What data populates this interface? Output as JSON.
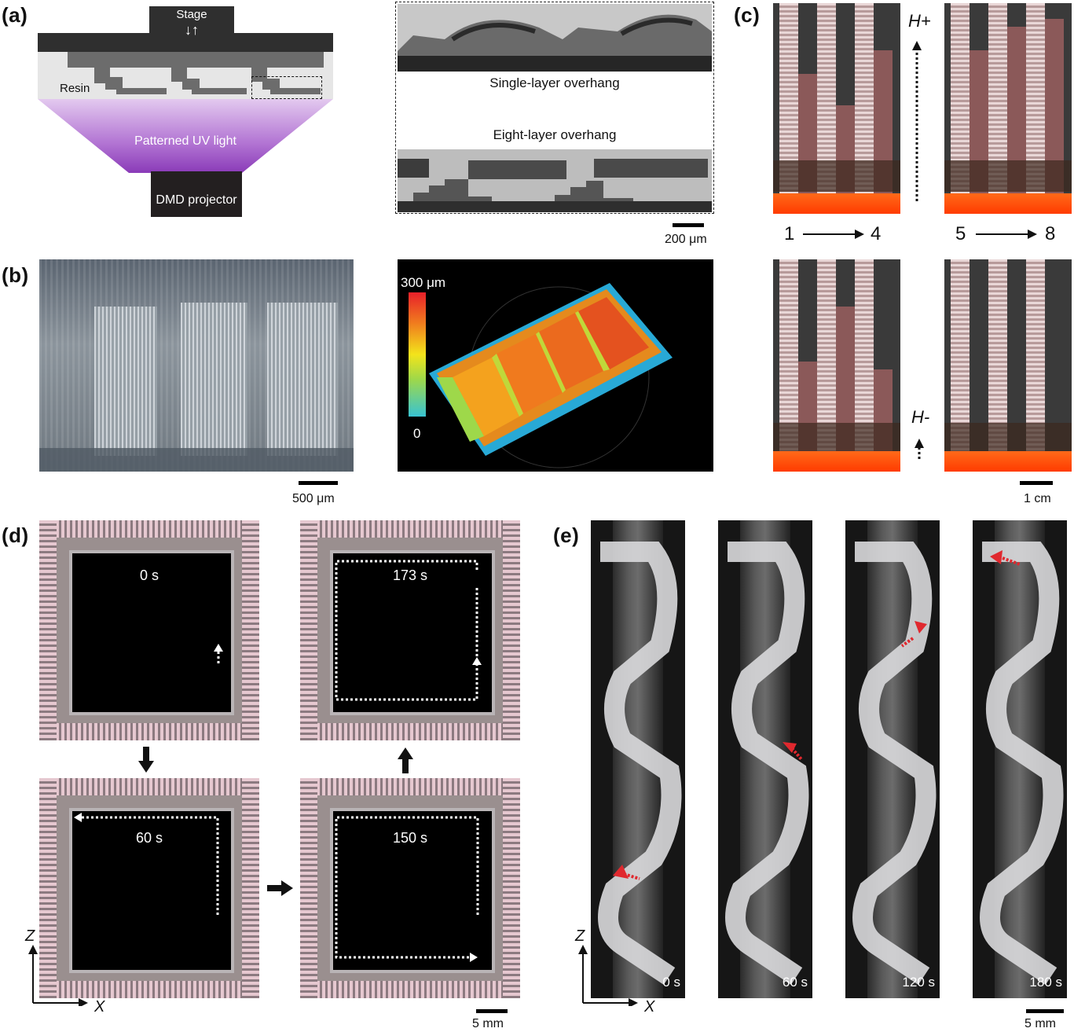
{
  "panels": {
    "a": "(a)",
    "b": "(b)",
    "c": "(c)",
    "d": "(d)",
    "e": "(e)"
  },
  "panel_a": {
    "stage": "Stage",
    "stage_arrows": "↓↑",
    "resin": "Resin",
    "uv_light": "Patterned UV light",
    "projector": "DMD projector",
    "single_layer": "Single-layer overhang",
    "eight_layer": "Eight-layer overhang",
    "scale": "200 μm",
    "colors": {
      "uv": "#b370d2",
      "part": "#6c6c6c",
      "stage": "#2f2f2f",
      "projector": "#231f20"
    }
  },
  "panel_b": {
    "scale": "500 μm",
    "colorbar_max": "300 μm",
    "colorbar_min": "0"
  },
  "panel_c": {
    "h_plus": "H+",
    "h_minus": "H-",
    "seq_start_1": "1",
    "seq_end_1": "4",
    "seq_start_2": "5",
    "seq_end_2": "8",
    "scale": "1 cm"
  },
  "panel_d": {
    "times": [
      "0 s",
      "173 s",
      "60 s",
      "150 s"
    ],
    "axis_z": "Z",
    "axis_x": "X",
    "scale": "5 mm"
  },
  "panel_e": {
    "times": [
      "0 s",
      "60 s",
      "120 s",
      "180 s"
    ],
    "axis_z": "Z",
    "axis_x": "X",
    "scale": "5 mm",
    "arrow_color": "#e0282e"
  }
}
